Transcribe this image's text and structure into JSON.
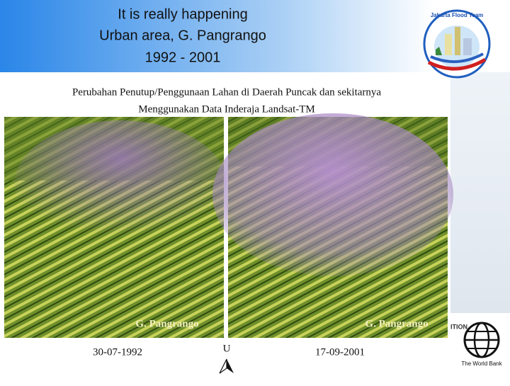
{
  "header": {
    "title_lines": [
      "It is really happening",
      "Urban area, G. Pangrango",
      "1992 - 2001"
    ]
  },
  "logo": {
    "text": "Jakarta Flood Team"
  },
  "caption": {
    "lines": [
      "Perubahan Penutup/Penggunaan Lahan di Daerah Puncak dan sekitarnya",
      "Menggunakan Data Inderaja Landsat-TM"
    ]
  },
  "images": [
    {
      "label": "G. Pangrango",
      "date": "30-07-1992"
    },
    {
      "label": "G. Pangrango",
      "date": "17-09-2001"
    }
  ],
  "north_label": "U",
  "side": {
    "partial_text": "ITION",
    "world_bank": "The World Bank"
  }
}
